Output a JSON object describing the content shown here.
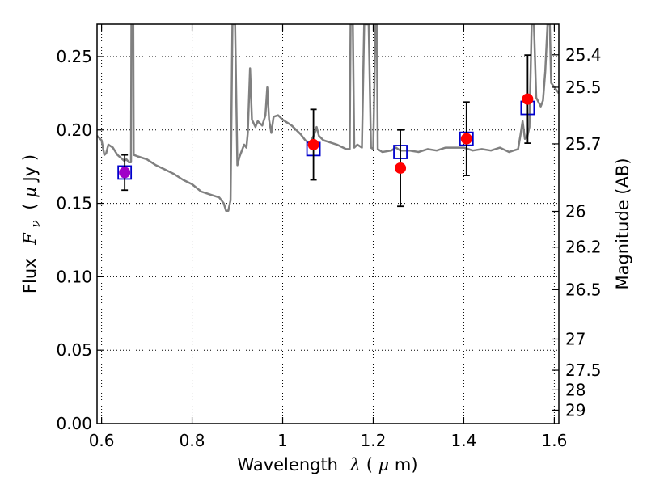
{
  "chart_data": {
    "type": "scatter",
    "xlabel": {
      "text": "Wavelength",
      "symbol": "λ",
      "unit_open": " (",
      "unit_mu": "μ",
      "unit_rest": "m)"
    },
    "ylabel": {
      "text": "Flux",
      "symbol": "F",
      "subscript": "ν",
      "unit_open": "( ",
      "unit_mu": "μ",
      "unit_rest": "Jy )"
    },
    "y2label": "Magnitude (AB)",
    "xlim": [
      0.59,
      1.61
    ],
    "ylim": [
      0.0,
      0.272
    ],
    "grid": true,
    "x_ticks": [
      {
        "value": 0.6,
        "label": "0.6"
      },
      {
        "value": 0.8,
        "label": "0.8"
      },
      {
        "value": 1.0,
        "label": "1"
      },
      {
        "value": 1.2,
        "label": "1.2"
      },
      {
        "value": 1.4,
        "label": "1.4"
      },
      {
        "value": 1.6,
        "label": "1.6"
      }
    ],
    "y_ticks": [
      {
        "value": 0.0,
        "label": "0.00"
      },
      {
        "value": 0.05,
        "label": "0.05"
      },
      {
        "value": 0.1,
        "label": "0.10"
      },
      {
        "value": 0.15,
        "label": "0.15"
      },
      {
        "value": 0.2,
        "label": "0.20"
      },
      {
        "value": 0.25,
        "label": "0.25"
      }
    ],
    "mag_ticks": [
      {
        "value": 25.4,
        "label": "25.4"
      },
      {
        "value": 25.5,
        "label": "25.5"
      },
      {
        "value": 25.7,
        "label": "25.7"
      },
      {
        "value": 26.0,
        "label": "26"
      },
      {
        "value": 26.2,
        "label": "26.2"
      },
      {
        "value": 26.5,
        "label": "26.5"
      },
      {
        "value": 27.0,
        "label": "27"
      },
      {
        "value": 27.5,
        "label": "27.5"
      },
      {
        "value": 28.0,
        "label": "28"
      },
      {
        "value": 29.0,
        "label": "29"
      }
    ],
    "model_spectrum": {
      "color": "#808080",
      "points": [
        [
          0.59,
          0.196
        ],
        [
          0.6,
          0.193
        ],
        [
          0.606,
          0.183
        ],
        [
          0.61,
          0.184
        ],
        [
          0.615,
          0.19
        ],
        [
          0.625,
          0.188
        ],
        [
          0.635,
          0.183
        ],
        [
          0.65,
          0.179
        ],
        [
          0.655,
          0.18
        ],
        [
          0.66,
          0.178
        ],
        [
          0.665,
          0.178
        ],
        [
          0.666,
          0.272
        ],
        [
          0.67,
          0.272
        ],
        [
          0.671,
          0.183
        ],
        [
          0.68,
          0.182
        ],
        [
          0.7,
          0.18
        ],
        [
          0.72,
          0.176
        ],
        [
          0.74,
          0.173
        ],
        [
          0.76,
          0.17
        ],
        [
          0.78,
          0.166
        ],
        [
          0.8,
          0.163
        ],
        [
          0.82,
          0.158
        ],
        [
          0.84,
          0.156
        ],
        [
          0.86,
          0.154
        ],
        [
          0.87,
          0.15
        ],
        [
          0.875,
          0.145
        ],
        [
          0.88,
          0.145
        ],
        [
          0.885,
          0.152
        ],
        [
          0.889,
          0.272
        ],
        [
          0.895,
          0.272
        ],
        [
          0.9,
          0.176
        ],
        [
          0.905,
          0.182
        ],
        [
          0.915,
          0.19
        ],
        [
          0.92,
          0.188
        ],
        [
          0.923,
          0.198
        ],
        [
          0.928,
          0.242
        ],
        [
          0.932,
          0.207
        ],
        [
          0.94,
          0.202
        ],
        [
          0.945,
          0.206
        ],
        [
          0.955,
          0.203
        ],
        [
          0.962,
          0.21
        ],
        [
          0.966,
          0.229
        ],
        [
          0.97,
          0.207
        ],
        [
          0.975,
          0.198
        ],
        [
          0.98,
          0.209
        ],
        [
          0.99,
          0.21
        ],
        [
          1.0,
          0.207
        ],
        [
          1.02,
          0.203
        ],
        [
          1.04,
          0.197
        ],
        [
          1.05,
          0.193
        ],
        [
          1.06,
          0.191
        ],
        [
          1.07,
          0.197
        ],
        [
          1.075,
          0.202
        ],
        [
          1.08,
          0.196
        ],
        [
          1.09,
          0.193
        ],
        [
          1.1,
          0.192
        ],
        [
          1.12,
          0.19
        ],
        [
          1.14,
          0.187
        ],
        [
          1.148,
          0.187
        ],
        [
          1.15,
          0.272
        ],
        [
          1.155,
          0.272
        ],
        [
          1.158,
          0.188
        ],
        [
          1.165,
          0.19
        ],
        [
          1.175,
          0.188
        ],
        [
          1.18,
          0.272
        ],
        [
          1.19,
          0.272
        ],
        [
          1.195,
          0.188
        ],
        [
          1.2,
          0.187
        ],
        [
          1.205,
          0.272
        ],
        [
          1.208,
          0.272
        ],
        [
          1.21,
          0.187
        ],
        [
          1.22,
          0.185
        ],
        [
          1.24,
          0.186
        ],
        [
          1.25,
          0.188
        ],
        [
          1.26,
          0.186
        ],
        [
          1.28,
          0.186
        ],
        [
          1.3,
          0.185
        ],
        [
          1.32,
          0.187
        ],
        [
          1.34,
          0.186
        ],
        [
          1.36,
          0.188
        ],
        [
          1.38,
          0.188
        ],
        [
          1.4,
          0.188
        ],
        [
          1.42,
          0.186
        ],
        [
          1.44,
          0.187
        ],
        [
          1.46,
          0.186
        ],
        [
          1.48,
          0.188
        ],
        [
          1.5,
          0.185
        ],
        [
          1.51,
          0.186
        ],
        [
          1.52,
          0.187
        ],
        [
          1.525,
          0.196
        ],
        [
          1.53,
          0.206
        ],
        [
          1.535,
          0.194
        ],
        [
          1.54,
          0.195
        ],
        [
          1.545,
          0.202
        ],
        [
          1.55,
          0.272
        ],
        [
          1.555,
          0.272
        ],
        [
          1.56,
          0.222
        ],
        [
          1.57,
          0.216
        ],
        [
          1.575,
          0.22
        ],
        [
          1.58,
          0.24
        ],
        [
          1.585,
          0.272
        ],
        [
          1.59,
          0.272
        ],
        [
          1.593,
          0.232
        ],
        [
          1.61,
          0.225
        ]
      ]
    },
    "model_fluxes": {
      "marker": "open-square",
      "color": "#0000cc",
      "points": [
        {
          "x": 0.651,
          "y": 0.171
        },
        {
          "x": 1.068,
          "y": 0.187
        },
        {
          "x": 1.26,
          "y": 0.185
        },
        {
          "x": 1.406,
          "y": 0.194
        },
        {
          "x": 1.541,
          "y": 0.215
        }
      ]
    },
    "observed_fluxes": {
      "marker": "filled-circle",
      "points": [
        {
          "x": 0.651,
          "y": 0.171,
          "yerr_low": 0.159,
          "yerr_high": 0.183,
          "color": "#a000c8"
        },
        {
          "x": 1.068,
          "y": 0.19,
          "yerr_low": 0.166,
          "yerr_high": 0.214,
          "color": "#ff0000"
        },
        {
          "x": 1.26,
          "y": 0.174,
          "yerr_low": 0.148,
          "yerr_high": 0.2,
          "color": "#ff0000"
        },
        {
          "x": 1.406,
          "y": 0.194,
          "yerr_low": 0.169,
          "yerr_high": 0.219,
          "color": "#ff0000"
        },
        {
          "x": 1.541,
          "y": 0.221,
          "yerr_low": 0.191,
          "yerr_high": 0.251,
          "color": "#ff0000"
        }
      ]
    }
  }
}
